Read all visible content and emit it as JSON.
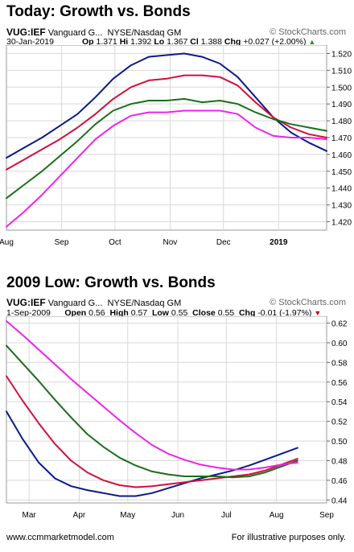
{
  "charts": [
    {
      "heading": "Today: Growth vs. Bonds",
      "symbol": "VUG:IEF",
      "name": "Vanguard G...",
      "exchange": "NYSE/Nasdaq GM",
      "date": "30-Jan-2019",
      "op_label": "Op",
      "op": "1.371",
      "hi_label": "Hi",
      "hi": "1.392",
      "lo_label": "Lo",
      "lo": "1.367",
      "cl_label": "Cl",
      "cl": "1.388",
      "chg_label": "Chg",
      "chg": "+0.027 (+2.00%)",
      "chg_arrow": "▲",
      "watermark": "© StockCharts.com"
    },
    {
      "heading": "2009 Low: Growth vs. Bonds",
      "symbol": "VUG:IEF",
      "name": "Vanguard G...",
      "exchange": "NYSE/Nasdaq GM",
      "date": "1-Sep-2009",
      "op_label": "Open",
      "op": "0.56",
      "hi_label": "High",
      "hi": "0.57",
      "lo_label": "Low",
      "lo": "0.55",
      "cl_label": "Close",
      "cl": "0.55",
      "chg_label": "Chg",
      "chg": "-0.01 (-1.97%)",
      "chg_arrow": "▼",
      "watermark": "© StockCharts.com"
    }
  ],
  "footer": {
    "left": "www.ccmmarketmodel.com",
    "right": "For illustrative purposes only."
  },
  "colors": {
    "blue": "#0b1a8a",
    "red": "#d0103a",
    "green": "#1a6e1a",
    "magenta": "#ee22ee",
    "grid": "#d8d8d8",
    "up": "#1a9a1a",
    "down": "#cc0000"
  },
  "chart_data": [
    {
      "type": "line",
      "x": [
        0,
        10,
        20,
        30,
        40,
        50,
        60,
        70,
        80,
        90,
        100,
        110,
        120,
        130,
        140,
        150,
        160,
        170,
        180
      ],
      "x_ticks": [
        {
          "label": "Aug",
          "x": 0
        },
        {
          "label": "Sep",
          "x": 31
        },
        {
          "label": "Oct",
          "x": 61
        },
        {
          "label": "Nov",
          "x": 92
        },
        {
          "label": "Dec",
          "x": 122
        },
        {
          "label": "2019",
          "x": 153
        }
      ],
      "ylim": [
        1.415,
        1.525
      ],
      "y_ticks": [
        1.42,
        1.43,
        1.44,
        1.45,
        1.46,
        1.47,
        1.48,
        1.49,
        1.5,
        1.51,
        1.52
      ],
      "y_tick_labels": [
        "1.420",
        "1.430",
        "1.440",
        "1.450",
        "1.460",
        "1.470",
        "1.480",
        "1.490",
        "1.500",
        "1.510",
        "1.520"
      ],
      "grid": true,
      "series": [
        {
          "color": "blue",
          "values": [
            1.458,
            1.464,
            1.47,
            1.477,
            1.484,
            1.494,
            1.505,
            1.513,
            1.518,
            1.519,
            1.52,
            1.518,
            1.514,
            1.506,
            1.494,
            1.482,
            1.473,
            1.467,
            1.462
          ]
        },
        {
          "color": "red",
          "values": [
            1.451,
            1.457,
            1.463,
            1.469,
            1.476,
            1.484,
            1.493,
            1.5,
            1.504,
            1.505,
            1.507,
            1.507,
            1.506,
            1.501,
            1.491,
            1.482,
            1.476,
            1.472,
            1.47
          ]
        },
        {
          "color": "green",
          "values": [
            1.434,
            1.442,
            1.45,
            1.459,
            1.468,
            1.478,
            1.486,
            1.49,
            1.492,
            1.492,
            1.493,
            1.491,
            1.492,
            1.49,
            1.485,
            1.481,
            1.478,
            1.476,
            1.474
          ]
        },
        {
          "color": "magenta",
          "values": [
            1.417,
            1.426,
            1.436,
            1.447,
            1.458,
            1.469,
            1.477,
            1.483,
            1.485,
            1.485,
            1.486,
            1.486,
            1.486,
            1.484,
            1.476,
            1.471,
            1.47,
            1.47,
            1.469
          ]
        }
      ]
    },
    {
      "type": "line",
      "x": [
        0,
        10,
        20,
        30,
        40,
        50,
        60,
        70,
        80,
        90,
        100,
        110,
        120,
        130,
        140,
        150,
        160,
        170,
        180
      ],
      "x_ticks": [
        {
          "label": "Mar",
          "x": 14
        },
        {
          "label": "Apr",
          "x": 45
        },
        {
          "label": "May",
          "x": 75
        },
        {
          "label": "Jun",
          "x": 106
        },
        {
          "label": "Jul",
          "x": 136
        },
        {
          "label": "Aug",
          "x": 167
        },
        {
          "label": "Sep",
          "x": 198
        }
      ],
      "x_max": 198,
      "ylim": [
        0.437,
        0.627
      ],
      "y_ticks": [
        0.44,
        0.46,
        0.48,
        0.5,
        0.52,
        0.54,
        0.56,
        0.58,
        0.6,
        0.62
      ],
      "y_tick_labels": [
        "0.44",
        "0.46",
        "0.48",
        "0.50",
        "0.52",
        "0.54",
        "0.56",
        "0.58",
        "0.60",
        "0.62"
      ],
      "grid": true,
      "series": [
        {
          "color": "blue",
          "values": [
            0.53,
            0.502,
            0.478,
            0.462,
            0.454,
            0.45,
            0.447,
            0.444,
            0.444,
            0.447,
            0.452,
            0.457,
            0.462,
            0.466,
            0.47,
            0.475,
            0.481,
            0.487,
            0.493
          ]
        },
        {
          "color": "red",
          "values": [
            0.566,
            0.541,
            0.518,
            0.497,
            0.48,
            0.468,
            0.46,
            0.455,
            0.453,
            0.454,
            0.456,
            0.458,
            0.46,
            0.462,
            0.464,
            0.466,
            0.47,
            0.476,
            0.482
          ]
        },
        {
          "color": "green",
          "values": [
            0.597,
            0.579,
            0.561,
            0.542,
            0.524,
            0.507,
            0.494,
            0.483,
            0.475,
            0.469,
            0.466,
            0.464,
            0.464,
            0.464,
            0.463,
            0.464,
            0.468,
            0.474,
            0.48
          ]
        },
        {
          "color": "magenta",
          "values": [
            0.622,
            0.608,
            0.593,
            0.578,
            0.563,
            0.549,
            0.535,
            0.521,
            0.508,
            0.496,
            0.487,
            0.481,
            0.476,
            0.473,
            0.471,
            0.471,
            0.473,
            0.476,
            0.478
          ]
        }
      ]
    }
  ]
}
